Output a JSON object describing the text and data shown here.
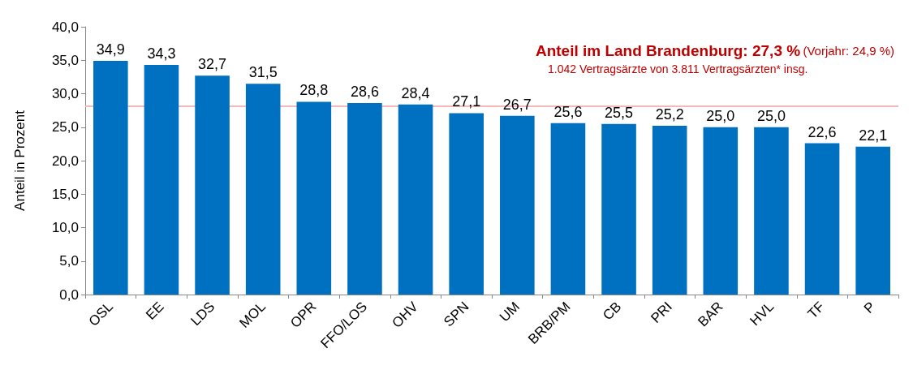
{
  "chart_data": {
    "type": "bar",
    "ylabel": "Anteil in Prozent",
    "categories": [
      "OSL",
      "EE",
      "LDS",
      "MOL",
      "OPR",
      "FFO/LOS",
      "OHV",
      "SPN",
      "UM",
      "BRB/PM",
      "CB",
      "PRI",
      "BAR",
      "HVL",
      "TF",
      "P"
    ],
    "values": [
      34.9,
      34.3,
      32.7,
      31.5,
      28.8,
      28.6,
      28.4,
      27.1,
      26.7,
      25.6,
      25.5,
      25.2,
      25.0,
      25.0,
      22.6,
      22.1
    ],
    "value_labels": [
      "34,9",
      "34,3",
      "32,7",
      "31,5",
      "28,8",
      "28,6",
      "28,4",
      "27,1",
      "26,7",
      "25,6",
      "25,5",
      "25,2",
      "25,0",
      "25,0",
      "22,6",
      "22,1"
    ],
    "color": "#0070c0",
    "ylim": [
      0,
      40
    ],
    "yticks": [
      {
        "value": 0,
        "label": "0,0"
      },
      {
        "value": 5,
        "label": "5,0"
      },
      {
        "value": 10,
        "label": "10,0"
      },
      {
        "value": 15,
        "label": "15,0"
      },
      {
        "value": 20,
        "label": "20,0"
      },
      {
        "value": 25,
        "label": "25,0"
      },
      {
        "value": 30,
        "label": "30,0"
      },
      {
        "value": 35,
        "label": "35,0"
      },
      {
        "value": 40,
        "label": "40,0"
      }
    ],
    "grid": false,
    "ref_lines": [
      {
        "axis": "y",
        "value": 28.2,
        "color": "#f4b8b8"
      }
    ],
    "annotations": [
      "Anteil im Land Brandenburg: 27,3 %",
      "(Vorjahr: 24,9 %)",
      "1.042 Vertragsärzte von 3.811 Vertragsärzten* insg."
    ]
  }
}
